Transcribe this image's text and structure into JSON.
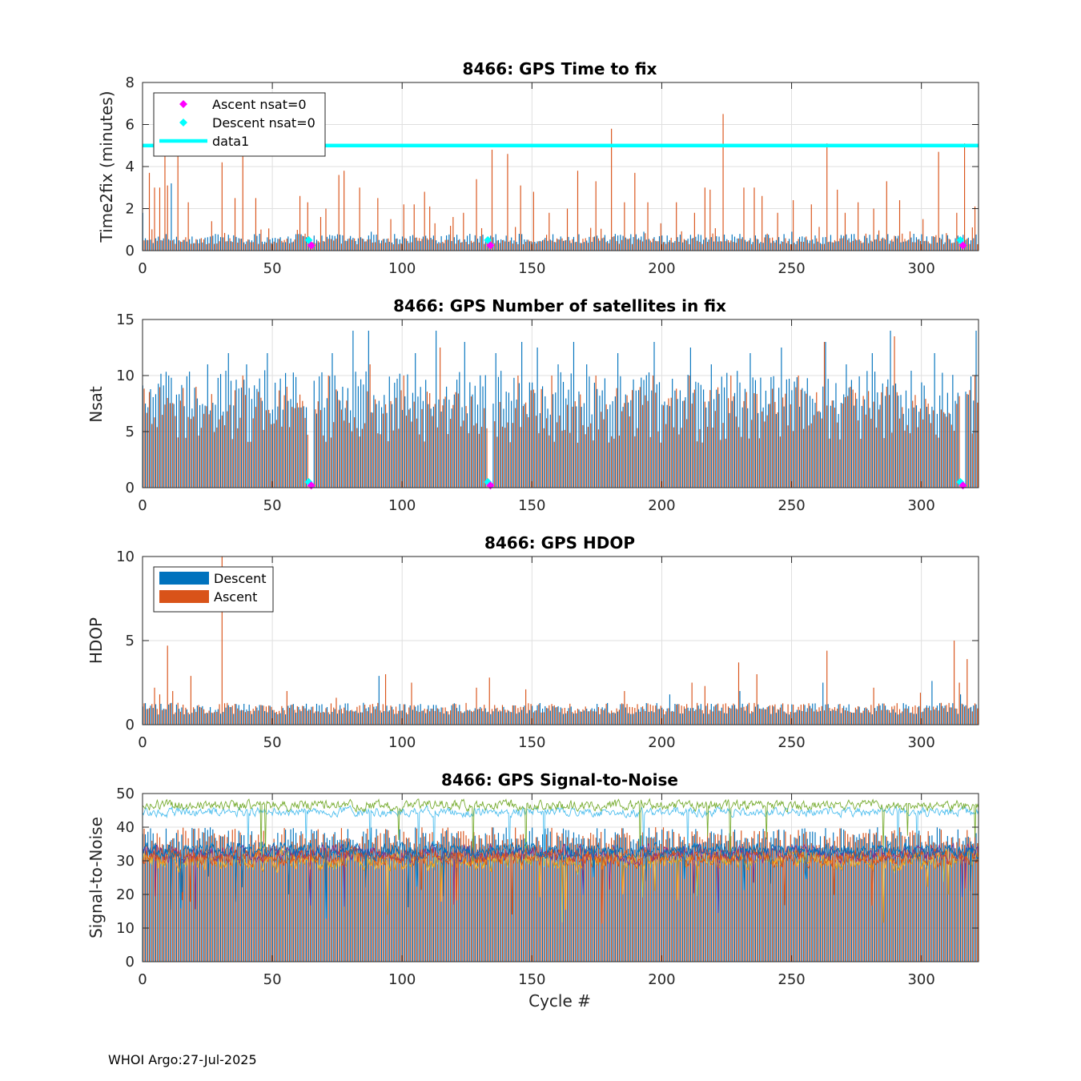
{
  "footer": "WHOI Argo:27-Jul-2025",
  "colors": {
    "descent": "#0072BD",
    "ascent": "#D95319",
    "magenta": "#FF00FF",
    "cyan": "#00FFFF",
    "grid": "#DFDFDF",
    "axis": "#262626",
    "snr_lines": [
      "#0072BD",
      "#D95319",
      "#EDB120",
      "#7E2F8E",
      "#77AC30",
      "#4DBEEE"
    ]
  },
  "chart_data": [
    {
      "id": "time2fix",
      "type": "bar",
      "title": "8466: GPS Time to fix",
      "xlabel": "",
      "ylabel": "Time2fix (minutes)",
      "xlim": [
        0,
        322
      ],
      "ylim": [
        0,
        8
      ],
      "xticks": [
        0,
        50,
        100,
        150,
        200,
        250,
        300
      ],
      "yticks": [
        0,
        2,
        4,
        6,
        8
      ],
      "legend": {
        "placement": "top-left",
        "entries": [
          {
            "label": "Ascent nsat=0",
            "kind": "marker",
            "color": "#FF00FF"
          },
          {
            "label": "Descent nsat=0",
            "kind": "marker",
            "color": "#00FFFF"
          },
          {
            "label": "data1",
            "kind": "line",
            "color": "#00FFFF"
          }
        ]
      },
      "reference_line": {
        "name": "data1",
        "y": 5
      },
      "zero_nsat_markers": {
        "ascent": [
          [
            65,
            0.25
          ],
          [
            134,
            0.25
          ],
          [
            316,
            0.25
          ]
        ],
        "descent": [
          [
            64,
            0.5
          ],
          [
            133,
            0.5
          ],
          [
            315,
            0.5
          ]
        ]
      },
      "ascent_peaks": [
        [
          2,
          3.7
        ],
        [
          4,
          3.0
        ],
        [
          6,
          3.0
        ],
        [
          8,
          4.8
        ],
        [
          9,
          3.1
        ],
        [
          13,
          4.7
        ],
        [
          17,
          2.3
        ],
        [
          26,
          1.4
        ],
        [
          30,
          4.2
        ],
        [
          35,
          2.5
        ],
        [
          38,
          4.8
        ],
        [
          43,
          2.5
        ],
        [
          60,
          2.6
        ],
        [
          63,
          2.3
        ],
        [
          68,
          1.6
        ],
        [
          70,
          2.0
        ],
        [
          75,
          3.6
        ],
        [
          77,
          3.8
        ],
        [
          83,
          3.0
        ],
        [
          90,
          2.5
        ],
        [
          95,
          1.5
        ],
        [
          100,
          2.2
        ],
        [
          104,
          2.2
        ],
        [
          108,
          2.8
        ],
        [
          110,
          2.1
        ],
        [
          112,
          1.3
        ],
        [
          119,
          1.6
        ],
        [
          123,
          1.8
        ],
        [
          128,
          3.4
        ],
        [
          134,
          4.8
        ],
        [
          140,
          4.6
        ],
        [
          145,
          3.1
        ],
        [
          150,
          2.8
        ],
        [
          156,
          1.8
        ],
        [
          163,
          2.0
        ],
        [
          167,
          3.8
        ],
        [
          174,
          3.3
        ],
        [
          180,
          5.8
        ],
        [
          185,
          2.3
        ],
        [
          189,
          3.7
        ],
        [
          194,
          2.3
        ],
        [
          199,
          1.3
        ],
        [
          205,
          2.3
        ],
        [
          212,
          1.8
        ],
        [
          216,
          3.0
        ],
        [
          218,
          2.9
        ],
        [
          223,
          6.5
        ],
        [
          231,
          3.0
        ],
        [
          235,
          3.0
        ],
        [
          238,
          2.6
        ],
        [
          244,
          1.8
        ],
        [
          250,
          2.4
        ],
        [
          257,
          2.2
        ],
        [
          263,
          5.1
        ],
        [
          267,
          2.9
        ],
        [
          270,
          1.8
        ],
        [
          275,
          2.3
        ],
        [
          281,
          2.0
        ],
        [
          286,
          3.3
        ],
        [
          291,
          2.4
        ],
        [
          300,
          1.5
        ],
        [
          306,
          4.7
        ],
        [
          313,
          1.8
        ],
        [
          316,
          5.1
        ],
        [
          320,
          2.1
        ]
      ],
      "descent_peaks": [
        [
          0,
          1.8
        ],
        [
          11,
          3.2
        ],
        [
          45,
          0.8
        ],
        [
          88,
          0.9
        ],
        [
          145,
          0.8
        ],
        [
          193,
          0.9
        ],
        [
          250,
          0.9
        ],
        [
          297,
          0.8
        ]
      ]
    },
    {
      "id": "nsat",
      "type": "bar",
      "title": "8466: GPS Number of satellites in fix",
      "xlabel": "",
      "ylabel": "Nsat",
      "xlim": [
        0,
        322
      ],
      "ylim": [
        0,
        15
      ],
      "xticks": [
        0,
        50,
        100,
        150,
        200,
        250,
        300
      ],
      "yticks": [
        0,
        5,
        10,
        15
      ],
      "zero_nsat_markers": {
        "ascent": [
          [
            65,
            0.2
          ],
          [
            134,
            0.2
          ],
          [
            316,
            0.2
          ]
        ],
        "descent": [
          [
            64,
            0.5
          ],
          [
            133,
            0.5
          ],
          [
            315,
            0.5
          ]
        ]
      },
      "descent_peaks": [
        [
          10,
          10
        ],
        [
          25,
          11
        ],
        [
          33,
          12
        ],
        [
          40,
          11
        ],
        [
          48,
          12
        ],
        [
          65,
          12.5
        ],
        [
          73,
          12
        ],
        [
          81,
          14
        ],
        [
          87,
          14
        ],
        [
          105,
          12
        ],
        [
          113,
          14
        ],
        [
          124,
          13
        ],
        [
          136,
          12
        ],
        [
          146,
          13
        ],
        [
          152,
          12.5
        ],
        [
          160,
          11
        ],
        [
          166,
          13
        ],
        [
          171,
          11
        ],
        [
          183,
          12
        ],
        [
          197,
          13
        ],
        [
          211,
          12.5
        ],
        [
          219,
          11
        ],
        [
          234,
          12
        ],
        [
          246,
          12.5
        ],
        [
          263,
          13
        ],
        [
          271,
          11
        ],
        [
          281,
          12
        ],
        [
          288,
          14
        ],
        [
          305,
          12
        ],
        [
          321,
          14
        ]
      ],
      "ascent_peaks": [
        [
          9,
          8
        ],
        [
          20,
          9
        ],
        [
          38,
          10
        ],
        [
          55,
          9
        ],
        [
          71,
          10
        ],
        [
          87,
          11
        ],
        [
          100,
          10
        ],
        [
          114,
          12.5
        ],
        [
          134,
          11
        ],
        [
          144,
          10
        ],
        [
          157,
          10
        ],
        [
          174,
          10
        ],
        [
          196,
          10
        ],
        [
          210,
          10
        ],
        [
          226,
          10
        ],
        [
          252,
          10
        ],
        [
          262,
          13
        ],
        [
          272,
          9
        ],
        [
          289,
          13.5
        ],
        [
          320,
          10
        ]
      ]
    },
    {
      "id": "hdop",
      "type": "bar",
      "title": "8466: GPS HDOP",
      "xlabel": "",
      "ylabel": "HDOP",
      "xlim": [
        0,
        322
      ],
      "ylim": [
        0,
        10
      ],
      "xticks": [
        0,
        50,
        100,
        150,
        200,
        250,
        300
      ],
      "yticks": [
        0,
        5,
        10
      ],
      "legend": {
        "placement": "top-left",
        "entries": [
          {
            "label": "Descent",
            "kind": "patch",
            "color": "#0072BD"
          },
          {
            "label": "Ascent",
            "kind": "patch",
            "color": "#D95319"
          }
        ]
      },
      "ascent_peaks": [
        [
          4,
          2.2
        ],
        [
          6,
          1.8
        ],
        [
          9,
          4.7
        ],
        [
          11,
          2.0
        ],
        [
          18,
          2.9
        ],
        [
          30,
          10
        ],
        [
          55,
          2.0
        ],
        [
          74,
          1.6
        ],
        [
          93,
          3.0
        ],
        [
          103,
          2.5
        ],
        [
          128,
          2.2
        ],
        [
          133,
          2.8
        ],
        [
          147,
          2.1
        ],
        [
          185,
          2.0
        ],
        [
          211,
          2.5
        ],
        [
          216,
          2.3
        ],
        [
          229,
          3.7
        ],
        [
          236,
          3.0
        ],
        [
          263,
          4.4
        ],
        [
          281,
          2.2
        ],
        [
          299,
          1.9
        ],
        [
          312,
          5.0
        ],
        [
          314,
          2.5
        ],
        [
          317,
          3.9
        ]
      ],
      "descent_peaks": [
        [
          91,
          2.9
        ],
        [
          203,
          1.8
        ],
        [
          230,
          2.0
        ],
        [
          262,
          2.5
        ],
        [
          304,
          2.6
        ],
        [
          315,
          1.8
        ],
        [
          316,
          1.2
        ]
      ]
    },
    {
      "id": "snr",
      "type": "line",
      "title": "8466: GPS Signal-to-Noise",
      "xlabel": "Cycle #",
      "ylabel": "Signal-to-Noise",
      "xlim": [
        0,
        322
      ],
      "ylim": [
        0,
        50
      ],
      "xticks": [
        0,
        50,
        100,
        150,
        200,
        250,
        300
      ],
      "yticks": [
        0,
        10,
        20,
        30,
        40,
        50
      ],
      "bar_band": [
        33,
        40
      ],
      "series": [
        {
          "name": "snr1",
          "color": "#4DBEEE",
          "mean": 44.5,
          "jitter": 2.2
        },
        {
          "name": "snr2",
          "color": "#77AC30",
          "mean": 46.5,
          "jitter": 2.4
        },
        {
          "name": "snr3",
          "color": "#EDB120",
          "mean": 30,
          "jitter": 4.5
        },
        {
          "name": "snr4",
          "color": "#7E2F8E",
          "mean": 32,
          "jitter": 4.0
        },
        {
          "name": "snr5",
          "color": "#D95319",
          "mean": 31,
          "jitter": 4.0
        },
        {
          "name": "snr6",
          "color": "#0072BD",
          "mean": 33,
          "jitter": 3.5
        }
      ]
    }
  ]
}
